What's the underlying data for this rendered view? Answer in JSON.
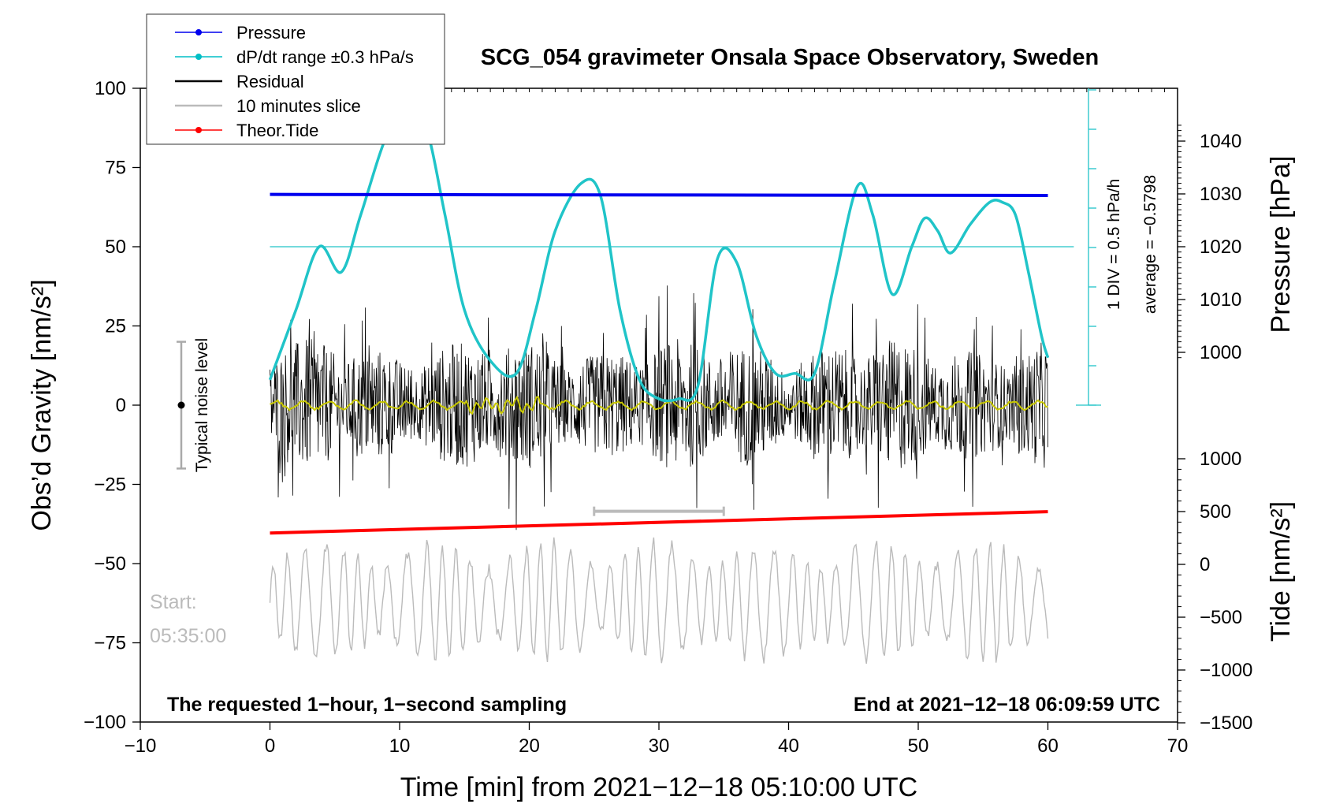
{
  "chart_data": {
    "type": "line",
    "title": "SCG_054 gravimeter Onsala Space Observatory, Sweden",
    "xlabel": "Time [min] from 2021−12−18 05:10:00 UTC",
    "ylabel": "Obs’d Gravity [nm/s²]",
    "ylabel_right_top": "Pressure [hPa]",
    "ylabel_right_bottom": "Tide [nm/s²]",
    "xlim": [
      -10,
      70
    ],
    "ylim": [
      -100,
      100
    ],
    "xticks": [
      -10,
      0,
      10,
      20,
      30,
      40,
      50,
      60,
      70
    ],
    "xtick_labels": [
      "−10",
      "0",
      "10",
      "20",
      "30",
      "40",
      "50",
      "60",
      "70"
    ],
    "yticks": [
      100,
      75,
      50,
      25,
      0,
      -25,
      -50,
      -75,
      -100
    ],
    "ytick_labels": [
      "100",
      "75",
      "50",
      "25",
      "0",
      "−25",
      "−50",
      "−75",
      "−100"
    ],
    "pressure_ticks": [
      1040,
      1030,
      1020,
      1010,
      1000
    ],
    "pressure_tick_labels": [
      "1040",
      "1030",
      "1020",
      "1010",
      "1000"
    ],
    "tide_ticks": [
      1000,
      500,
      0,
      -500,
      -1000,
      -1500
    ],
    "tide_tick_labels": [
      "1000",
      "500",
      "0",
      "−500",
      "−1000",
      "−1500"
    ],
    "legend": [
      {
        "name": "Pressure",
        "color": "#0000ee",
        "marker": true
      },
      {
        "name": "dP/dt range ±0.3 hPa/s",
        "color": "#00bfc6",
        "marker": true
      },
      {
        "name": "Residual",
        "color": "#000000",
        "marker": false
      },
      {
        "name": "10 minutes slice",
        "color": "#bbbbbb",
        "marker": false
      },
      {
        "name": "Theor.Tide",
        "color": "#ff0000",
        "marker": true
      }
    ],
    "legend_position": "top-left",
    "series": [
      {
        "name": "Pressure",
        "axis": "pressure_hPa",
        "x": [
          0,
          60
        ],
        "y": [
          1029.9,
          1029.7
        ],
        "color": "#0000ee"
      },
      {
        "name": "Theor.Tide",
        "axis": "tide_nm_s2",
        "x": [
          0,
          60
        ],
        "y": [
          297,
          499
        ],
        "color": "#ff0000"
      },
      {
        "name": "dP/dt",
        "axis": "gravity_scale",
        "color": "#20c4c8",
        "x": [
          0,
          2,
          3.8,
          5.5,
          7,
          9,
          10.5,
          12,
          13.5,
          15,
          17,
          19,
          20.5,
          22,
          24,
          25.5,
          27,
          28.5,
          30,
          31.5,
          33,
          34.5,
          36,
          37.5,
          39,
          40.5,
          42,
          43.5,
          45.3,
          46.5,
          48,
          49.5,
          50.5,
          51.5,
          52.5,
          54,
          55.5,
          56.5,
          57.5,
          58.5,
          59.5,
          60
        ],
        "y": [
          8,
          30,
          50,
          42,
          60,
          85,
          91,
          88,
          60,
          30,
          14,
          10,
          30,
          55,
          70,
          66,
          30,
          8,
          2,
          2,
          6,
          46,
          45,
          22,
          10,
          10,
          10,
          38,
          69,
          60,
          35,
          50,
          59,
          55,
          48,
          57,
          64,
          64,
          60,
          42,
          22,
          15
        ]
      },
      {
        "name": "Residual",
        "axis": "gravity_nm_s2",
        "x_range": [
          0,
          60
        ],
        "color": "#000000"
      },
      {
        "name": "10 minutes slice",
        "axis": "gravity_nm_s2",
        "x_range": [
          0,
          60
        ],
        "color": "#bbbbbb"
      },
      {
        "name": "Residual mean",
        "axis": "gravity_nm_s2",
        "x_range": [
          0,
          60
        ],
        "color": "#c8c800"
      }
    ],
    "reference_line": {
      "y": 50
    },
    "annotations": {
      "noise_label": "Typical noise level",
      "noise_range": [
        -20,
        20
      ],
      "scale_label": "1 DIV = 0.5 hPa/h",
      "average_label": "average = −0.5798",
      "start_label": "Start:",
      "start_time": "05:35:00",
      "slice_range": [
        25,
        35
      ],
      "sampling_note": "The requested 1−hour, 1−second sampling",
      "end_note": "End at 2021−12−18 06:09:59 UTC"
    }
  }
}
